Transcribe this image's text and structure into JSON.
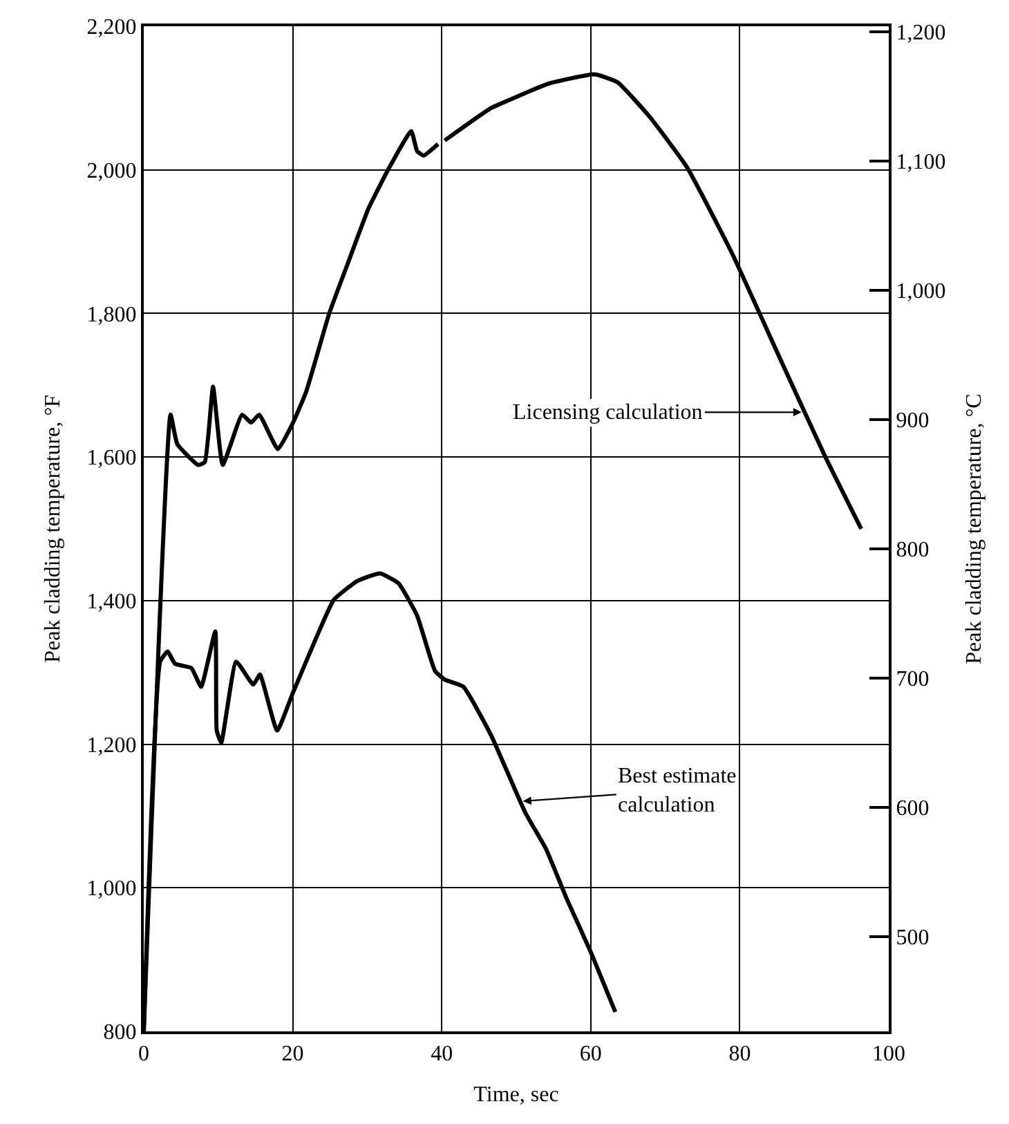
{
  "chart_data": {
    "type": "line",
    "xlabel": "Time, sec",
    "ylabel": "Peak cladding temperature, °F",
    "y2label": "Peak cladding temperature, °C",
    "xlim": [
      0,
      100
    ],
    "xticks": [
      0,
      20,
      40,
      60,
      80,
      100
    ],
    "ylim": [
      800,
      2200
    ],
    "yticks": [
      {
        "value": 800,
        "label": "800"
      },
      {
        "value": 1000,
        "label": "1,000"
      },
      {
        "value": 1200,
        "label": "1,200"
      },
      {
        "value": 1400,
        "label": "1,400"
      },
      {
        "value": 1600,
        "label": "1,600"
      },
      {
        "value": 1800,
        "label": "1,800"
      },
      {
        "value": 2000,
        "label": "2,000"
      },
      {
        "value": 2200,
        "label": "2,200"
      }
    ],
    "y2lim": [
      426.7,
      1204.4
    ],
    "y2ticks": [
      500,
      600,
      700,
      800,
      900,
      {
        "value": 1000,
        "label": "1,000"
      },
      {
        "value": 1100,
        "label": "1,100"
      },
      {
        "value": 1200,
        "label": "1,200"
      }
    ],
    "grid": true,
    "marker": "none",
    "line_style": "solid",
    "series": [
      {
        "color": "#000000",
        "x": [
          0,
          3.6,
          4.5,
          7.3,
          8.2,
          9.3,
          10.6,
          13.2,
          14.4,
          15.5,
          18.0,
          20.0,
          21.8,
          24.9,
          27.4,
          30.2,
          33.0,
          35.9,
          36.7,
          37.6,
          39.5,
          null,
          40.4,
          43.5,
          46.6,
          48.1,
          54.3,
          60.5,
          63.6,
          67.9,
          72.9,
          79.0,
          85.2,
          91.4,
          96.3
        ],
        "values": [
          800,
          1659,
          1618,
          1589,
          1593,
          1698,
          1589,
          1659,
          1648,
          1659,
          1611,
          1647,
          1691,
          1800,
          1870,
          1947,
          2004,
          2054,
          2026,
          2020,
          2036,
          null,
          2041,
          2064,
          2086,
          2093,
          2120,
          2133,
          2122,
          2074,
          2004,
          1883,
          1742,
          1602,
          1500
        ]
      },
      {
        "color": "#000000",
        "x": [
          0,
          2.2,
          3.2,
          4.2,
          6.4,
          7.7,
          9.6,
          9.8,
          10.4,
          12.4,
          14.7,
          15.6,
          17.9,
          20.0,
          23.1,
          25.5,
          28.6,
          31.7,
          34.2,
          36.7,
          39.1,
          40.4,
          42.9,
          46.6,
          51.2,
          54.0,
          56.8,
          59.9,
          63.3
        ],
        "values": [
          800,
          1315,
          1329,
          1312,
          1306,
          1280,
          1357,
          1219,
          1202,
          1315,
          1283,
          1297,
          1219,
          1271,
          1347,
          1401,
          1427,
          1438,
          1424,
          1379,
          1302,
          1290,
          1280,
          1213,
          1105,
          1054,
          984,
          913,
          827
        ]
      }
    ],
    "annotations": [
      "Licensing calculation",
      "Best estimate\ncalculation"
    ]
  }
}
